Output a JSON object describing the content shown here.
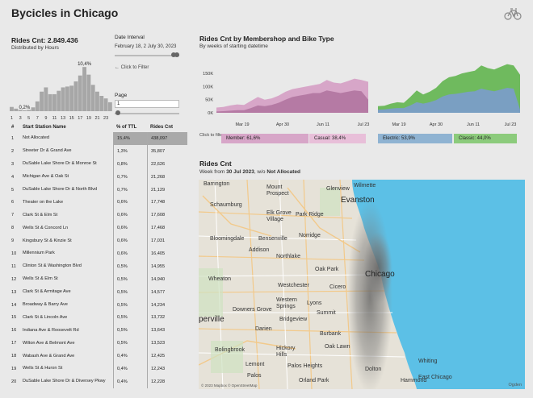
{
  "title": "Bycicles in Chicago",
  "summary": {
    "rides_title": "Rides Cnt: 2.849.436",
    "subtitle": "Distributed by Hours"
  },
  "histogram": {
    "values": [
      1.0,
      0.6,
      0.3,
      0.2,
      0.3,
      0.9,
      2.3,
      4.6,
      5.6,
      4.0,
      4.0,
      4.8,
      5.6,
      5.8,
      6.0,
      7.0,
      8.4,
      10.4,
      8.6,
      6.2,
      4.6,
      3.6,
      3.0,
      2.1
    ],
    "label_max": "10,4%",
    "label_min": "0,2%",
    "ticks": [
      "1",
      "3",
      "5",
      "7",
      "9",
      "11",
      "13",
      "15",
      "17",
      "19",
      "21",
      "23"
    ]
  },
  "filters": {
    "date_label": "Date Interval",
    "date_value": "February 18, 2 July 30, 2023",
    "date_range": [
      0.95,
      1.0
    ],
    "click_to_filter": "← Click to Filter",
    "page_label": "Page",
    "page_value": "1",
    "page_position": 0.02
  },
  "table": {
    "headers": {
      "num": "#",
      "name": "Start Station Name",
      "pct": "% of TTL",
      "cnt": "Rides Cnt"
    },
    "rows": [
      {
        "num": "1",
        "name": "Not Allocated",
        "pct": "15,4%",
        "cnt": "438,097"
      },
      {
        "num": "2",
        "name": "Streeter Dr & Grand Ave",
        "pct": "1,3%",
        "cnt": "35,807"
      },
      {
        "num": "3",
        "name": "DuSable Lake Shore Dr & Monroe St",
        "pct": "0,8%",
        "cnt": "22,626"
      },
      {
        "num": "4",
        "name": "Michigan Ave & Oak St",
        "pct": "0,7%",
        "cnt": "21,268"
      },
      {
        "num": "5",
        "name": "DuSable Lake Shore Dr & North Blvd",
        "pct": "0,7%",
        "cnt": "21,129"
      },
      {
        "num": "6",
        "name": "Theater on the Lake",
        "pct": "0,6%",
        "cnt": "17,748"
      },
      {
        "num": "7",
        "name": "Clark St & Elm St",
        "pct": "0,6%",
        "cnt": "17,608"
      },
      {
        "num": "8",
        "name": "Wells St & Concord Ln",
        "pct": "0,6%",
        "cnt": "17,468"
      },
      {
        "num": "9",
        "name": "Kingsbury St & Kinzie St",
        "pct": "0,6%",
        "cnt": "17,031"
      },
      {
        "num": "10",
        "name": "Millennium Park",
        "pct": "0,6%",
        "cnt": "16,405"
      },
      {
        "num": "11",
        "name": "Clinton St & Washington Blvd",
        "pct": "0,5%",
        "cnt": "14,955"
      },
      {
        "num": "12",
        "name": "Wells St & Elm St",
        "pct": "0,5%",
        "cnt": "14,940"
      },
      {
        "num": "13",
        "name": "Clark St & Armitage Ave",
        "pct": "0,5%",
        "cnt": "14,577"
      },
      {
        "num": "14",
        "name": "Broadway & Barry Ave",
        "pct": "0,5%",
        "cnt": "14,234"
      },
      {
        "num": "15",
        "name": "Clark St & Lincoln Ave",
        "pct": "0,5%",
        "cnt": "13,732"
      },
      {
        "num": "16",
        "name": "Indiana Ave & Roosevelt Rd",
        "pct": "0,5%",
        "cnt": "13,643"
      },
      {
        "num": "17",
        "name": "Wilton Ave & Belmont Ave",
        "pct": "0,5%",
        "cnt": "13,523"
      },
      {
        "num": "18",
        "name": "Wabash Ave & Grand Ave",
        "pct": "0,4%",
        "cnt": "12,425"
      },
      {
        "num": "19",
        "name": "Wells St & Huron St",
        "pct": "0,4%",
        "cnt": "12,243"
      },
      {
        "num": "20",
        "name": "DuSable Lake Shore Dr & Diversey Pkwy",
        "pct": "0,4%",
        "cnt": "12,228"
      }
    ]
  },
  "membership": {
    "title": "Rides Cnt by Membershop and Bike Type",
    "subtitle": "By weeks of starting datetime",
    "y_ticks": [
      "150K",
      "100K",
      "50K",
      "0K"
    ],
    "x_ticks": [
      "Mar 19",
      "Apr 30",
      "Jun 11",
      "Jul 23"
    ],
    "member_series": [
      20,
      22,
      28,
      32,
      30,
      45,
      60,
      50,
      55,
      65,
      80,
      90,
      95,
      100,
      105,
      110,
      125,
      115,
      112,
      120,
      130,
      125,
      118
    ],
    "casual_series": [
      5,
      6,
      8,
      10,
      10,
      18,
      28,
      25,
      30,
      38,
      50,
      60,
      65,
      70,
      75,
      75,
      85,
      80,
      75,
      80,
      85,
      82,
      50
    ],
    "classic_series": [
      25,
      27,
      35,
      40,
      38,
      60,
      85,
      70,
      80,
      95,
      120,
      135,
      140,
      150,
      155,
      160,
      180,
      170,
      165,
      175,
      185,
      180,
      145
    ],
    "electric_series": [
      12,
      13,
      16,
      18,
      18,
      28,
      40,
      35,
      40,
      48,
      62,
      70,
      72,
      76,
      80,
      82,
      92,
      86,
      82,
      88,
      95,
      92,
      12
    ],
    "click_to_filter": "Click to filter →",
    "legend": [
      {
        "label": "Member: 61,6%",
        "color": "#d7a6c8"
      },
      {
        "label": "Casual: 38,4%",
        "color": "#e8bfd9"
      },
      {
        "label": "Electric: 53,9%",
        "color": "#8fb3d2"
      },
      {
        "label": "Classic: 44,0%",
        "color": "#8ccb7c"
      }
    ]
  },
  "map": {
    "title": "Rides Cnt",
    "subtitle_pre": "Week from ",
    "subtitle_bold1": "30 Jul 2023",
    "subtitle_mid": ", w/o ",
    "subtitle_bold2": "Not Allocated",
    "credit": "© 2023 Mapbox © OpenStreetMap",
    "places": {
      "barrington": "Barrington",
      "mount_prospect": "Mount Prospect",
      "glenview": "Glenview",
      "wilmette": "Wilmette",
      "schaumburg": "Schaumburg",
      "evanston": "Evanston",
      "elk_grove": "Elk Grove Village",
      "park_ridge": "Park Ridge",
      "bloomingdale": "Bloomingdale",
      "bensenville": "Bensenville",
      "norridge": "Norridge",
      "addison": "Addison",
      "northlake": "Northlake",
      "oak_park": "Oak Park",
      "wheaton": "Wheaton",
      "westchester": "Westchester",
      "chicago": "Chicago",
      "cicero": "Cicero",
      "downers_grove": "Downers Grove",
      "western_springs": "Western Springs",
      "lyons": "Lyons",
      "summit": "Summit",
      "naperville": "perville",
      "darien": "Darien",
      "burbank": "Burbank",
      "bridgeview": "Bridgeview",
      "oak_lawn": "Oak Lawn",
      "bolingbrook": "Bolingbrook",
      "hickory_hills": "Hickory Hills",
      "lemont": "Lemont",
      "palos_heights": "Palos Heights",
      "dolton": "Dolton",
      "whiting": "Whiting",
      "east_chicago": "East Chicago",
      "hammond": "Hammond",
      "orland_park": "Orland Park",
      "ogden": "Ogden",
      "palos": "Palos"
    }
  }
}
